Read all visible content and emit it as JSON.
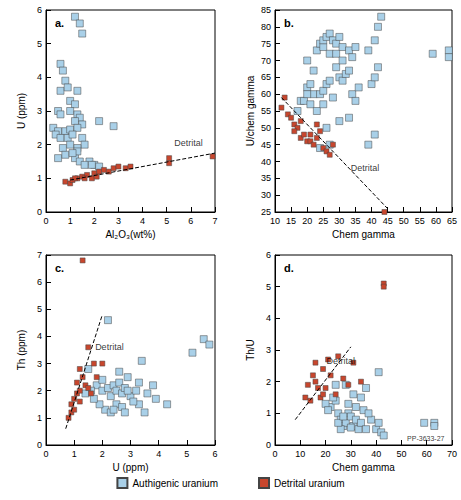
{
  "chart_data": [
    {
      "type": "scatter",
      "title": "a.",
      "x_label": "Al₂O₃(wt%)",
      "y_label": "U (ppm)",
      "xlim": [
        0,
        7
      ],
      "xticks": [
        0,
        1,
        2,
        3,
        4,
        5,
        6,
        7
      ],
      "ylim": [
        0,
        6
      ],
      "yticks": [
        0,
        1,
        2,
        3,
        4,
        5,
        6
      ],
      "grid": false,
      "legend": "bottom",
      "series": [
        {
          "name": "Authigenic uranium",
          "type": "scatter",
          "color": "#a9d0e8",
          "marker": "square",
          "x": [
            1.2,
            1.4,
            1.5,
            0.6,
            0.7,
            0.8,
            0.6,
            0.9,
            1.3,
            1.0,
            1.2,
            1.0,
            0.5,
            0.6,
            1.3,
            1.4,
            1.2,
            2.2,
            1.5,
            2.8,
            0.3,
            0.5,
            0.8,
            1.0,
            1.3,
            0.4,
            0.6,
            0.9,
            1.1,
            1.5,
            1.6,
            1.0,
            0.7,
            1.3,
            0.5,
            1.2,
            1.4,
            1.8,
            2.0,
            1.6,
            2.2,
            1.3,
            0.8,
            1.1,
            1.9
          ],
          "values": [
            5.8,
            5.6,
            5.3,
            4.4,
            4.2,
            3.9,
            3.6,
            3.7,
            3.6,
            3.3,
            3.2,
            3.0,
            3.0,
            2.9,
            2.9,
            2.8,
            2.7,
            2.7,
            2.6,
            2.55,
            2.5,
            2.4,
            2.4,
            2.45,
            2.5,
            2.3,
            2.2,
            2.2,
            2.3,
            2.2,
            2.0,
            2.0,
            1.9,
            1.9,
            1.6,
            1.6,
            1.5,
            1.5,
            1.4,
            1.4,
            1.35,
            1.8,
            1.7,
            1.75,
            1.4
          ]
        },
        {
          "name": "Detrital uranium",
          "type": "scatter",
          "color": "#c8462d",
          "marker": "square",
          "x": [
            0.8,
            1.0,
            1.1,
            1.3,
            1.5,
            1.7,
            1.9,
            2.0,
            2.2,
            2.4,
            2.6,
            2.8,
            3.0,
            3.3,
            3.5,
            1.2,
            1.6,
            2.1,
            5.1,
            5.1,
            6.9
          ],
          "values": [
            0.9,
            0.85,
            0.95,
            1.0,
            1.05,
            1.1,
            1.0,
            1.15,
            1.2,
            1.25,
            1.2,
            1.3,
            1.35,
            1.3,
            1.35,
            1.0,
            1.0,
            1.05,
            1.6,
            1.45,
            1.65
          ]
        },
        {
          "type": "line",
          "line_style": "dashed",
          "color": "#000000",
          "x": [
            1,
            7
          ],
          "values": [
            0.95,
            1.75
          ]
        }
      ],
      "annotations": [
        {
          "text": "Detrital",
          "x": 5.9,
          "y": 2.05
        }
      ]
    },
    {
      "type": "scatter",
      "title": "b.",
      "x_label": "Chem gamma",
      "y_label": "U/chem gamma",
      "xlim": [
        10,
        65
      ],
      "xticks": [
        10,
        15,
        20,
        25,
        30,
        35,
        40,
        45,
        50,
        55,
        60,
        65
      ],
      "ylim": [
        25,
        85
      ],
      "yticks": [
        25,
        30,
        35,
        40,
        45,
        50,
        55,
        60,
        65,
        70,
        75,
        80,
        85
      ],
      "grid": false,
      "series": [
        {
          "name": "Authigenic uranium",
          "type": "scatter",
          "color": "#a9d0e8",
          "marker": "square",
          "x": [
            20,
            23,
            24,
            25,
            25,
            26,
            27,
            28,
            29,
            30,
            27,
            29,
            31,
            33,
            35,
            39,
            41,
            42,
            43,
            59,
            64,
            64,
            17,
            18,
            19,
            20,
            21,
            22,
            21,
            23,
            24,
            25,
            26,
            27,
            28,
            29,
            30,
            31,
            32,
            33,
            34,
            35,
            36,
            40,
            41,
            42,
            25,
            26,
            27,
            30,
            33,
            39,
            41,
            22,
            31,
            20,
            34,
            24
          ],
          "values": [
            70,
            73,
            75,
            74,
            76,
            77,
            78,
            76,
            75,
            77,
            72,
            72,
            74,
            73,
            74,
            73,
            76,
            80,
            83,
            72,
            73,
            71,
            55,
            58,
            58,
            62,
            63,
            60,
            57,
            55,
            60,
            61,
            63,
            64,
            59,
            68,
            65,
            64,
            66,
            67,
            60,
            58,
            62,
            63,
            65,
            68,
            57,
            50,
            45,
            52,
            53,
            45,
            48,
            67,
            70,
            60,
            71,
            44
          ]
        },
        {
          "name": "Detrital uranium",
          "type": "scatter",
          "color": "#c8462d",
          "marker": "square",
          "x": [
            12,
            13,
            14,
            15,
            16,
            17,
            18,
            19,
            20,
            21,
            22,
            23,
            24,
            25,
            26,
            27,
            21,
            16,
            18,
            23,
            28,
            44
          ],
          "values": [
            56,
            59,
            54,
            53,
            51,
            50,
            47,
            48,
            46,
            46,
            45,
            47,
            49,
            44,
            43,
            42,
            48,
            49,
            52,
            51,
            45,
            25
          ]
        },
        {
          "type": "line",
          "line_style": "dashed",
          "color": "#000000",
          "x": [
            12,
            45
          ],
          "values": [
            59,
            26
          ]
        }
      ],
      "annotations": [
        {
          "text": "Detrital",
          "x": 38,
          "y": 38
        }
      ]
    },
    {
      "type": "scatter",
      "title": "c.",
      "x_label": "U (ppm)",
      "y_label": "Th (ppm)",
      "xlim": [
        0,
        6
      ],
      "xticks": [
        0,
        1,
        2,
        3,
        4,
        5,
        6
      ],
      "ylim": [
        0,
        7
      ],
      "yticks": [
        0,
        1,
        2,
        3,
        4,
        5,
        6,
        7
      ],
      "grid": false,
      "series": [
        {
          "name": "Authigenic uranium",
          "type": "scatter",
          "color": "#a9d0e8",
          "marker": "square",
          "x": [
            1.5,
            1.8,
            2.0,
            2.2,
            2.3,
            2.4,
            2.5,
            2.6,
            2.7,
            2.8,
            2.5,
            2.1,
            2.3,
            1.9,
            2.9,
            3.0,
            3.2,
            3.3,
            3.4,
            3.5,
            3.8,
            3.9,
            4.3,
            2.2,
            2.6,
            1.7,
            1.6,
            2.0,
            2.4,
            2.7,
            3.1,
            5.2,
            5.6,
            5.8,
            2.8,
            3.6,
            1.4,
            2.9,
            3.3
          ],
          "values": [
            2.8,
            2.2,
            2.0,
            2.1,
            1.8,
            2.2,
            2.0,
            2.3,
            1.9,
            2.1,
            1.5,
            1.3,
            1.2,
            1.5,
            2.5,
            1.8,
            2.0,
            1.5,
            3.1,
            1.2,
            2.2,
            1.7,
            1.5,
            4.6,
            2.7,
            1.7,
            2.0,
            2.4,
            1.3,
            1.4,
            1.6,
            3.4,
            3.9,
            3.7,
            1.2,
            1.9,
            1.9,
            2.0,
            2.3
          ]
        },
        {
          "name": "Detrital uranium",
          "type": "scatter",
          "color": "#c8462d",
          "marker": "square",
          "x": [
            0.8,
            0.9,
            0.9,
            1.0,
            1.0,
            1.1,
            1.1,
            1.2,
            1.2,
            1.3,
            1.3,
            1.4,
            1.5,
            1.6,
            1.7,
            1.8,
            1.5,
            1.2,
            2.0
          ],
          "values": [
            1.0,
            1.2,
            1.5,
            1.7,
            1.3,
            1.9,
            2.3,
            2.8,
            2.0,
            2.5,
            6.8,
            2.2,
            2.1,
            1.9,
            3.0,
            2.5,
            3.6,
            1.6,
            3.0
          ]
        },
        {
          "type": "line",
          "line_style": "dashed",
          "color": "#000000",
          "x": [
            0.7,
            2.0
          ],
          "values": [
            0.6,
            4.8
          ]
        }
      ],
      "annotations": [
        {
          "text": "Detrital",
          "x": 2.25,
          "y": 3.6
        }
      ]
    },
    {
      "type": "scatter",
      "title": "d.",
      "x_label": "Chem gamma",
      "y_label": "Th/U",
      "xlim": [
        0,
        70
      ],
      "xticks": [
        0,
        10,
        20,
        30,
        40,
        50,
        60,
        70
      ],
      "ylim": [
        0,
        6
      ],
      "yticks": [
        0,
        1,
        2,
        3,
        4,
        5,
        6
      ],
      "grid": false,
      "series": [
        {
          "name": "Authigenic uranium",
          "type": "scatter",
          "color": "#a9d0e8",
          "marker": "square",
          "x": [
            28,
            22,
            25,
            26,
            27,
            28,
            29,
            30,
            31,
            32,
            33,
            34,
            35,
            36,
            24,
            23,
            20,
            21,
            26,
            30,
            32,
            38,
            40,
            41,
            42,
            43,
            37,
            31,
            29,
            59,
            63,
            63,
            25,
            27,
            34,
            36,
            41,
            24
          ],
          "values": [
            1.9,
            1.2,
            1.0,
            0.8,
            0.6,
            0.7,
            1.0,
            0.9,
            0.6,
            0.8,
            0.5,
            0.7,
            1.1,
            0.5,
            1.4,
            1.5,
            1.3,
            1.1,
            0.5,
            0.55,
            1.2,
            0.8,
            0.5,
            0.7,
            0.4,
            0.3,
            1.0,
            1.6,
            1.3,
            0.7,
            0.7,
            0.6,
            0.7,
            0.9,
            1.5,
            1.8,
            2.3,
            1.9
          ]
        },
        {
          "name": "Detrital uranium",
          "type": "scatter",
          "color": "#c8462d",
          "marker": "square",
          "x": [
            12,
            13,
            14,
            15,
            16,
            17,
            18,
            19,
            20,
            21,
            22,
            24,
            25,
            27,
            29,
            31,
            34,
            19,
            16,
            43,
            43
          ],
          "values": [
            1.5,
            1.9,
            1.4,
            2.2,
            2.0,
            1.8,
            1.5,
            2.4,
            1.8,
            2.7,
            2.2,
            1.6,
            2.8,
            2.1,
            1.9,
            2.6,
            2.0,
            1.6,
            2.6,
            5.1,
            5.0
          ]
        },
        {
          "type": "line",
          "line_style": "dashed",
          "color": "#000000",
          "x": [
            8,
            30
          ],
          "values": [
            0.8,
            3.1
          ]
        }
      ],
      "annotations": [
        {
          "text": "Detrital",
          "x": 26,
          "y": 2.65
        },
        {
          "text": "PP-3633-27",
          "x": 69,
          "y": 0.2
        }
      ]
    }
  ]
}
